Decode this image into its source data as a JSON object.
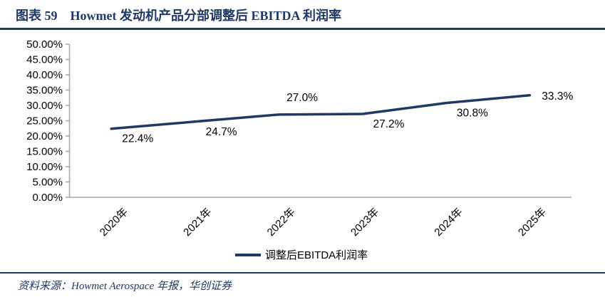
{
  "header": {
    "title": "图表 59　Howmet 发动机产品分部调整后 EBITDA 利润率"
  },
  "chart_data": {
    "type": "line",
    "title": "图表 59　Howmet 发动机产品分部调整后 EBITDA 利润率",
    "categories": [
      "2020年",
      "2021年",
      "2022年",
      "2023年",
      "2024年",
      "2025年"
    ],
    "series": [
      {
        "name": "调整后EBITDA利润率",
        "values": [
          22.4,
          24.7,
          27.0,
          27.2,
          30.8,
          33.3
        ]
      }
    ],
    "data_labels": [
      "22.4%",
      "24.7%",
      "27.0%",
      "27.2%",
      "30.8%",
      "33.3%"
    ],
    "label_placement": [
      "below",
      "below",
      "above",
      "below",
      "below",
      "right"
    ],
    "y_ticks": [
      "0.00%",
      "5.00%",
      "10.00%",
      "15.00%",
      "20.00%",
      "25.00%",
      "30.00%",
      "35.00%",
      "40.00%",
      "45.00%",
      "50.00%"
    ],
    "ylim": [
      0,
      50
    ],
    "xlabel": "",
    "ylabel": "",
    "grid": "off",
    "legend": "调整后EBITDA利润率",
    "legend_position": "bottom",
    "colors": {
      "line": "#1F3864",
      "axis": "#A6A6A6",
      "label": "#000000"
    }
  },
  "footer": {
    "source": "资料来源：Howmet Aerospace 年报，华创证券"
  },
  "theme": {
    "accent": "#1F3864"
  }
}
